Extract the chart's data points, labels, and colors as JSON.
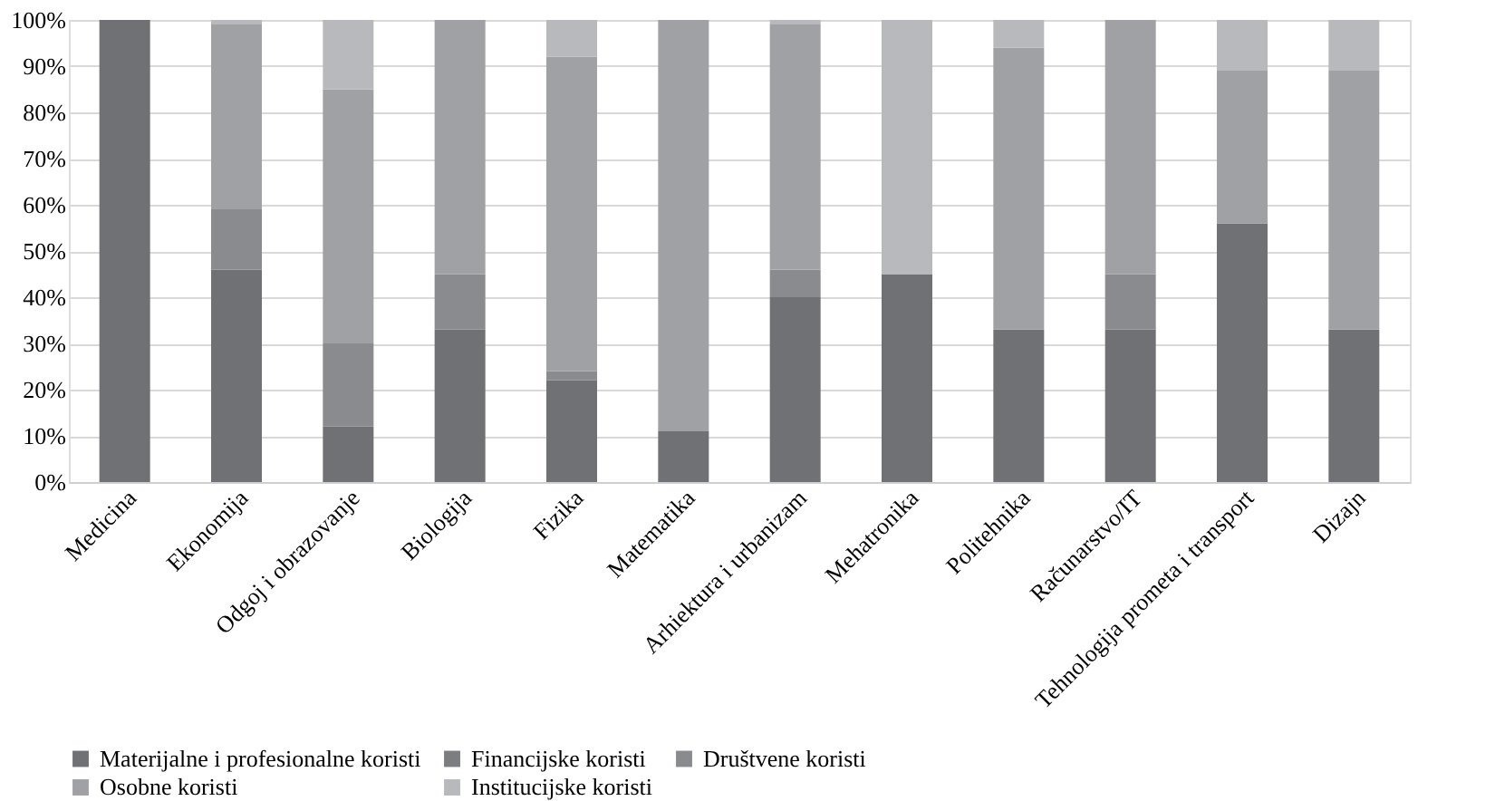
{
  "chart_data": {
    "type": "bar",
    "stacked": true,
    "categories": [
      "Medicina",
      "Ekonomija",
      "Odgoj i obrazovanje",
      "Biologija",
      "Fizika",
      "Matematika",
      "Arhiektura i urbanizam",
      "Mehatronika",
      "Politehnika",
      "Računarstvo/IT",
      "Tehnologija prometa i transport",
      "Dizajn"
    ],
    "series": [
      {
        "name": "Materijalne i profesionalne koristi",
        "color": "#707175",
        "values": [
          100,
          46,
          12,
          33,
          22,
          11,
          40,
          45,
          33,
          33,
          56,
          33
        ]
      },
      {
        "name": "Financijske koristi",
        "color": "#7c7d80",
        "values": [
          0,
          0,
          0,
          0,
          0,
          0,
          0,
          0,
          0,
          0,
          0,
          0
        ]
      },
      {
        "name": "Društvene koristi",
        "color": "#8a8b8e",
        "values": [
          0,
          13,
          18,
          12,
          2,
          0,
          6,
          0,
          0,
          12,
          0,
          0
        ]
      },
      {
        "name": "Osobne koristi",
        "color": "#a0a1a4",
        "values": [
          0,
          40,
          55,
          55,
          68,
          89,
          53,
          0,
          61,
          55,
          33,
          56
        ]
      },
      {
        "name": "Institucijske koristi",
        "color": "#b8b9bc",
        "values": [
          0,
          1,
          15,
          0,
          8,
          0,
          1,
          55,
          6,
          0,
          11,
          11
        ]
      }
    ],
    "ylim": [
      0,
      100
    ],
    "yticks": [
      {
        "value": 0,
        "label": "0%"
      },
      {
        "value": 10,
        "label": "10%"
      },
      {
        "value": 20,
        "label": "20%"
      },
      {
        "value": 30,
        "label": "30%"
      },
      {
        "value": 40,
        "label": "40%"
      },
      {
        "value": 50,
        "label": "50%"
      },
      {
        "value": 60,
        "label": "60%"
      },
      {
        "value": 70,
        "label": "70%"
      },
      {
        "value": 80,
        "label": "80%"
      },
      {
        "value": 90,
        "label": "90%"
      },
      {
        "value": 100,
        "label": "100%"
      }
    ],
    "grid": "y",
    "legend": "bottom"
  }
}
